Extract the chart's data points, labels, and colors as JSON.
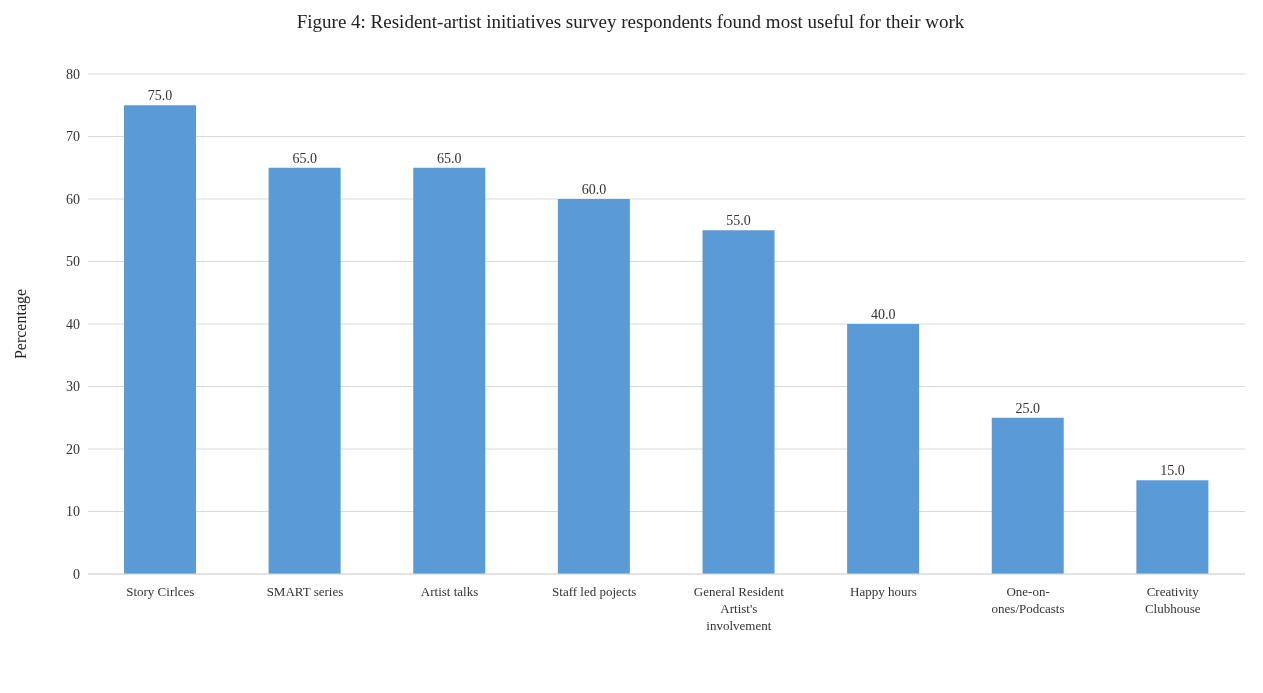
{
  "chart_data": {
    "type": "bar",
    "title": "Figure 4: Resident-artist initiatives survey respondents found most useful for their work",
    "ylabel": "Percentage",
    "categories": [
      "Story Cirlces",
      "SMART series",
      "Artist talks",
      "Staff led pojects",
      "General Resident Artist's involvement",
      "Happy hours",
      "One-on-ones/Podcasts",
      "Creativity Clubhouse"
    ],
    "values": [
      75,
      65,
      65,
      60,
      55,
      40,
      25,
      15
    ],
    "value_labels": [
      "75.0",
      "65.0",
      "65.0",
      "60.0",
      "55.0",
      "40.0",
      "25.0",
      "15.0"
    ],
    "color": "#5b9bd5",
    "ylim": [
      0,
      80
    ],
    "yticks": [
      0,
      10,
      20,
      30,
      40,
      50,
      60,
      70,
      80
    ],
    "grid": "y"
  }
}
